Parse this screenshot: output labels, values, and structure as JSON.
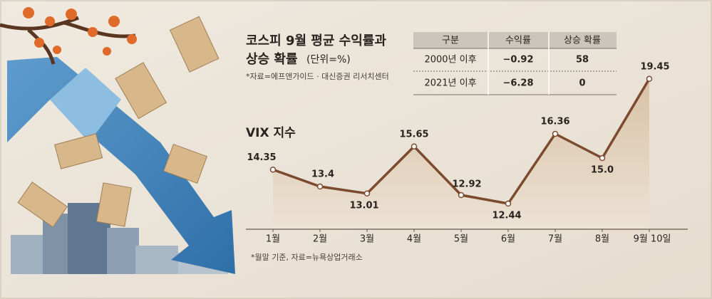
{
  "header": {
    "title_lines": [
      "코스피 9월 평균 수익률과",
      "상승 확률"
    ],
    "unit": "(단위=%)",
    "source": "*자료=에프앤가이드 · 대신증권 리서치센터"
  },
  "table": {
    "columns": [
      "구분",
      "수익률",
      "상승 확률"
    ],
    "rows": [
      [
        "2000년 이후",
        "−0.92",
        58
      ],
      [
        "2021년 이후",
        "−6.28",
        0
      ]
    ]
  },
  "chart_data": {
    "type": "line",
    "title": "VIX 지수",
    "categories": [
      "1월",
      "2월",
      "3월",
      "4월",
      "5월",
      "6월",
      "7월",
      "8월",
      "9월 10일"
    ],
    "values": [
      14.35,
      13.4,
      13.01,
      15.65,
      12.92,
      12.44,
      16.36,
      15.0,
      19.45
    ],
    "value_labels": [
      "14.35",
      "13.4",
      "13.01",
      "15.65",
      "12.92",
      "12.44",
      "16.36",
      "15.0",
      "19.45"
    ],
    "color": "#7b4a2f",
    "ylim": [
      11,
      20
    ],
    "note": "*월말 기준, 자료=뉴욕상업거래소"
  }
}
